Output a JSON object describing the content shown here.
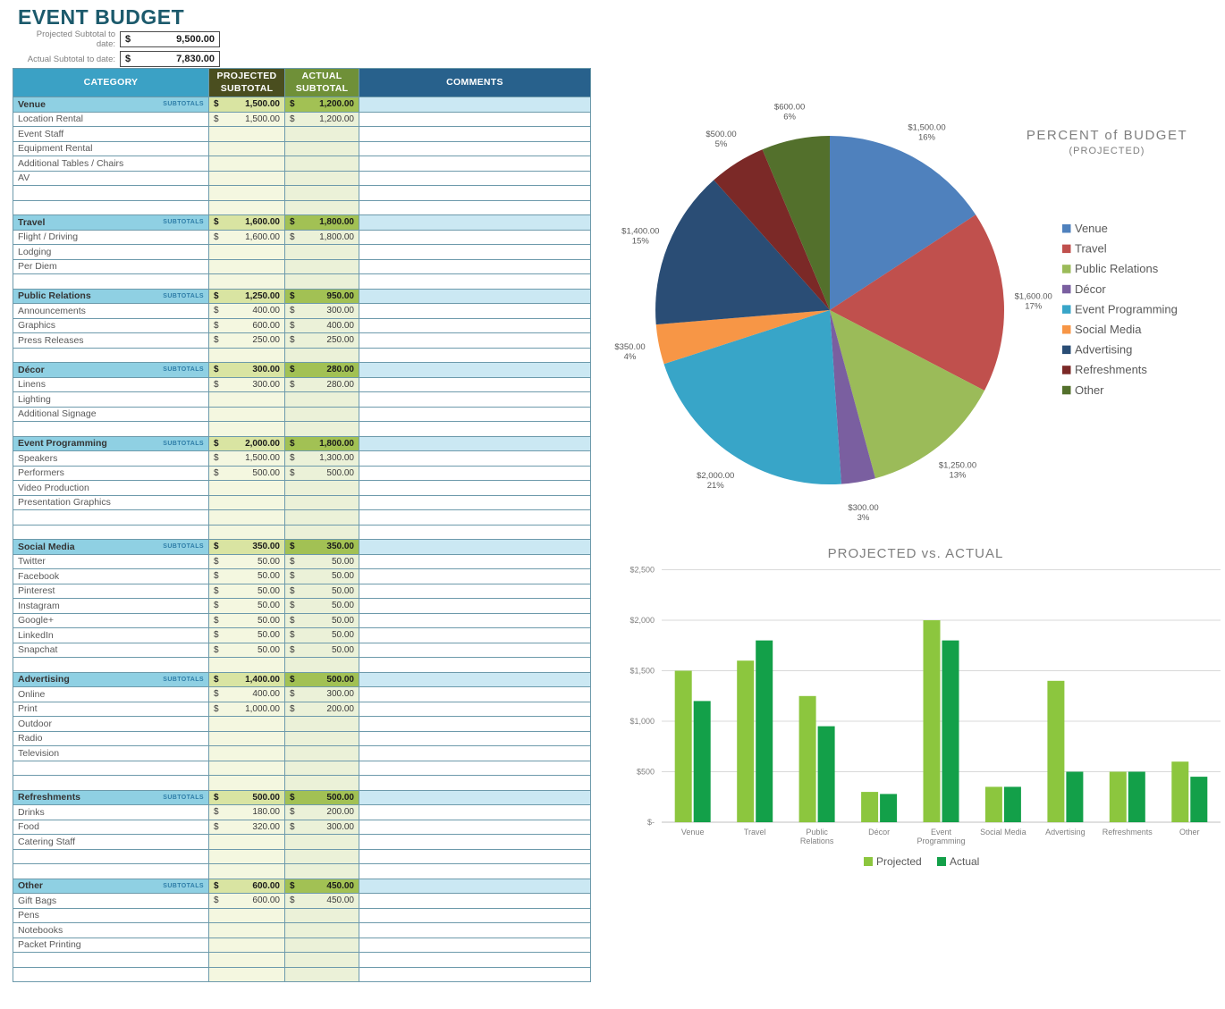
{
  "header": {
    "title": "EVENT BUDGET"
  },
  "summary": {
    "projected_label": "Projected Subtotal to date:",
    "projected_currency": "$",
    "projected_value": "9,500.00",
    "actual_label": "Actual Subtotal to date:",
    "actual_currency": "$",
    "actual_value": "7,830.00"
  },
  "table": {
    "headers": {
      "category": "CATEGORY",
      "projected": "PROJECTED SUBTOTAL",
      "actual": "ACTUAL SUBTOTAL",
      "comments": "COMMENTS"
    },
    "subtotals_label": "SUBTOTALS",
    "currency": "$",
    "sections": [
      {
        "name": "Venue",
        "projected": "1,500.00",
        "actual": "1,200.00",
        "empty_rows": 2,
        "items": [
          {
            "label": "Location Rental",
            "projected": "1,500.00",
            "actual": "1,200.00"
          },
          {
            "label": "Event Staff"
          },
          {
            "label": "Equipment Rental"
          },
          {
            "label": "Additional Tables / Chairs"
          },
          {
            "label": "AV"
          }
        ]
      },
      {
        "name": "Travel",
        "projected": "1,600.00",
        "actual": "1,800.00",
        "empty_rows": 1,
        "items": [
          {
            "label": "Flight / Driving",
            "projected": "1,600.00",
            "actual": "1,800.00"
          },
          {
            "label": "Lodging"
          },
          {
            "label": "Per Diem"
          }
        ]
      },
      {
        "name": "Public Relations",
        "projected": "1,250.00",
        "actual": "950.00",
        "empty_rows": 1,
        "items": [
          {
            "label": "Announcements",
            "projected": "400.00",
            "actual": "300.00"
          },
          {
            "label": "Graphics",
            "projected": "600.00",
            "actual": "400.00"
          },
          {
            "label": "Press Releases",
            "projected": "250.00",
            "actual": "250.00"
          }
        ]
      },
      {
        "name": "Décor",
        "projected": "300.00",
        "actual": "280.00",
        "empty_rows": 1,
        "items": [
          {
            "label": "Linens",
            "projected": "300.00",
            "actual": "280.00"
          },
          {
            "label": "Lighting"
          },
          {
            "label": "Additional Signage"
          }
        ]
      },
      {
        "name": "Event Programming",
        "projected": "2,000.00",
        "actual": "1,800.00",
        "empty_rows": 2,
        "items": [
          {
            "label": "Speakers",
            "projected": "1,500.00",
            "actual": "1,300.00"
          },
          {
            "label": "Performers",
            "projected": "500.00",
            "actual": "500.00"
          },
          {
            "label": "Video Production"
          },
          {
            "label": "Presentation Graphics"
          }
        ]
      },
      {
        "name": "Social Media",
        "projected": "350.00",
        "actual": "350.00",
        "empty_rows": 1,
        "items": [
          {
            "label": "Twitter",
            "projected": "50.00",
            "actual": "50.00"
          },
          {
            "label": "Facebook",
            "projected": "50.00",
            "actual": "50.00"
          },
          {
            "label": "Pinterest",
            "projected": "50.00",
            "actual": "50.00"
          },
          {
            "label": "Instagram",
            "projected": "50.00",
            "actual": "50.00"
          },
          {
            "label": "Google+",
            "projected": "50.00",
            "actual": "50.00"
          },
          {
            "label": "LinkedIn",
            "projected": "50.00",
            "actual": "50.00"
          },
          {
            "label": "Snapchat",
            "projected": "50.00",
            "actual": "50.00"
          }
        ]
      },
      {
        "name": "Advertising",
        "projected": "1,400.00",
        "actual": "500.00",
        "empty_rows": 2,
        "items": [
          {
            "label": "Online",
            "projected": "400.00",
            "actual": "300.00"
          },
          {
            "label": "Print",
            "projected": "1,000.00",
            "actual": "200.00"
          },
          {
            "label": "Outdoor"
          },
          {
            "label": "Radio"
          },
          {
            "label": "Television"
          }
        ]
      },
      {
        "name": "Refreshments",
        "projected": "500.00",
        "actual": "500.00",
        "empty_rows": 2,
        "items": [
          {
            "label": "Drinks",
            "projected": "180.00",
            "actual": "200.00"
          },
          {
            "label": "Food",
            "projected": "320.00",
            "actual": "300.00"
          },
          {
            "label": "Catering Staff"
          }
        ]
      },
      {
        "name": "Other",
        "projected": "600.00",
        "actual": "450.00",
        "empty_rows": 2,
        "items": [
          {
            "label": "Gift Bags",
            "projected": "600.00",
            "actual": "450.00"
          },
          {
            "label": "Pens"
          },
          {
            "label": "Notebooks"
          },
          {
            "label": "Packet Printing"
          }
        ]
      }
    ]
  },
  "chart_data": [
    {
      "type": "pie",
      "title": "PERCENT of BUDGET",
      "subtitle": "(PROJECTED)",
      "labels": [
        "Venue",
        "Travel",
        "Public Relations",
        "Décor",
        "Event Programming",
        "Social Media",
        "Advertising",
        "Refreshments",
        "Other"
      ],
      "values": [
        1500,
        1600,
        1250,
        300,
        2000,
        350,
        1400,
        500,
        600
      ],
      "percents": [
        16,
        17,
        13,
        3,
        21,
        4,
        15,
        5,
        6
      ],
      "value_labels": [
        "$1,500.00",
        "$1,600.00",
        "$1,250.00",
        "$300.00",
        "$2,000.00",
        "$350.00",
        "$1,400.00",
        "$500.00",
        "$600.00"
      ],
      "colors": [
        "#4f81bd",
        "#c0504d",
        "#9bbb59",
        "#7a5fa0",
        "#38a5c8",
        "#f79646",
        "#2a4d75",
        "#7b2927",
        "#53702c"
      ],
      "legend_position": "right"
    },
    {
      "type": "bar",
      "title": "PROJECTED vs. ACTUAL",
      "categories": [
        "Venue",
        "Travel",
        "Public Relations",
        "Décor",
        "Event Programming",
        "Social Media",
        "Advertising",
        "Refreshments",
        "Other"
      ],
      "series": [
        {
          "name": "Projected",
          "color": "#8cc63e",
          "values": [
            1500,
            1600,
            1250,
            300,
            2000,
            350,
            1400,
            500,
            600
          ]
        },
        {
          "name": "Actual",
          "color": "#13a049",
          "values": [
            1200,
            1800,
            950,
            280,
            1800,
            350,
            500,
            500,
            450
          ]
        }
      ],
      "y_ticks": [
        {
          "label": "$2,500",
          "value": 2500
        },
        {
          "label": "$2,000",
          "value": 2000
        },
        {
          "label": "$1,500",
          "value": 1500
        },
        {
          "label": "$1,000",
          "value": 1000
        },
        {
          "label": "$500",
          "value": 500
        },
        {
          "label": "$-",
          "value": 0
        }
      ],
      "ylim": [
        0,
        2500
      ],
      "grid": true,
      "legend_position": "bottom"
    }
  ]
}
